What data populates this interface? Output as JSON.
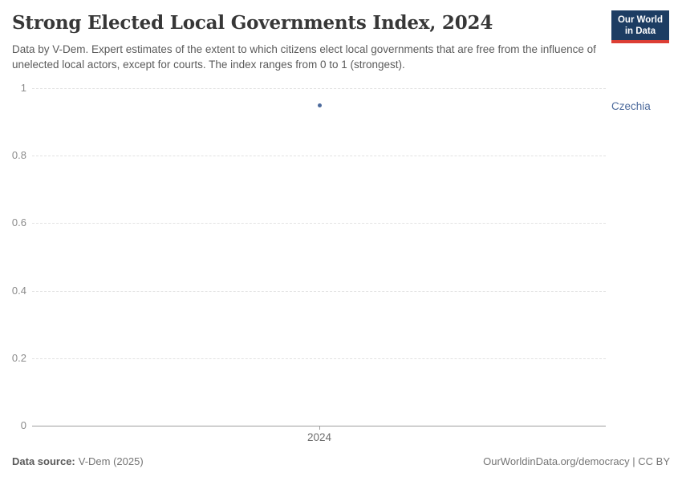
{
  "header": {
    "title": "Strong Elected Local Governments Index, 2024",
    "subtitle": "Data by V-Dem. Expert estimates of the extent to which citizens elect local governments that are free from the influence of unelected local actors, except for courts. The index ranges from 0 to 1 (strongest).",
    "logo": {
      "line1": "Our World",
      "line2": "in Data",
      "bg_color": "#1d3d63",
      "bar_color": "#dc3e34",
      "text_color": "#ffffff"
    }
  },
  "chart_data": {
    "type": "scatter",
    "title": "Strong Elected Local Governments Index, 2024",
    "xlabel": "",
    "ylabel": "",
    "ylim": [
      0,
      1
    ],
    "yticks": [
      "0",
      "0.2",
      "0.4",
      "0.6",
      "0.8",
      "1"
    ],
    "xticks": [
      "2024"
    ],
    "grid": "horizontal-dashed",
    "legend_position": "label-right-of-plot",
    "series": [
      {
        "name": "Czechia",
        "x": 2024,
        "value": 0.95,
        "color": "#4c6a9c"
      }
    ]
  },
  "footer": {
    "source_label": "Data source:",
    "source_value": "V-Dem (2025)",
    "credit": "OurWorldinData.org/democracy | CC BY"
  }
}
